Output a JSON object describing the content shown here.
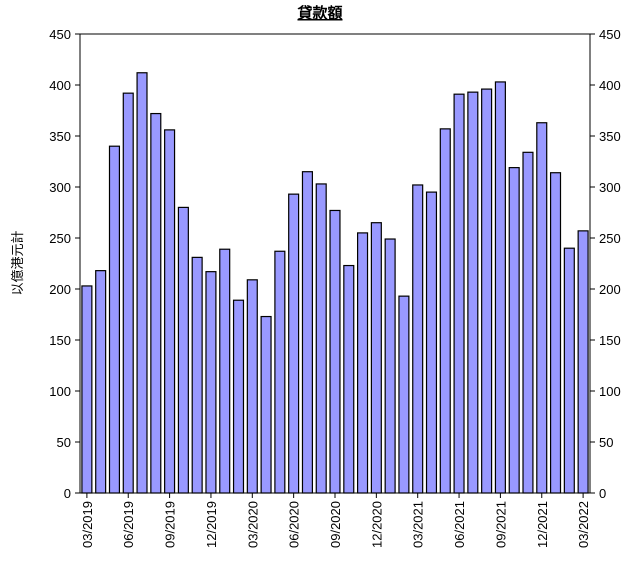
{
  "chart_data": {
    "type": "bar",
    "title": "貸款額",
    "y_label": "以億港元計",
    "categories": [
      "03/2019",
      null,
      null,
      "06/2019",
      null,
      null,
      "09/2019",
      null,
      null,
      "12/2019",
      null,
      null,
      "03/2020",
      null,
      null,
      "06/2020",
      null,
      null,
      "09/2020",
      null,
      null,
      "12/2020",
      null,
      null,
      "03/2021",
      null,
      null,
      "06/2021",
      null,
      null,
      "09/2021",
      null,
      null,
      "12/2021",
      null,
      null,
      "03/2022"
    ],
    "values": [
      203,
      218,
      340,
      392,
      412,
      372,
      356,
      280,
      231,
      217,
      239,
      189,
      209,
      173,
      237,
      293,
      315,
      303,
      277,
      223,
      255,
      265,
      249,
      193,
      302,
      295,
      357,
      391,
      393,
      396,
      403,
      319,
      334,
      363,
      314,
      240,
      257
    ],
    "color": "#9999ff",
    "ylim": [
      0,
      450
    ],
    "yticks": [
      0,
      50,
      100,
      150,
      200,
      250,
      300,
      350,
      400,
      450
    ],
    "y2lim": [
      0,
      450
    ],
    "y2ticks": [
      0,
      50,
      100,
      150,
      200,
      250,
      300,
      350,
      400,
      450
    ]
  }
}
